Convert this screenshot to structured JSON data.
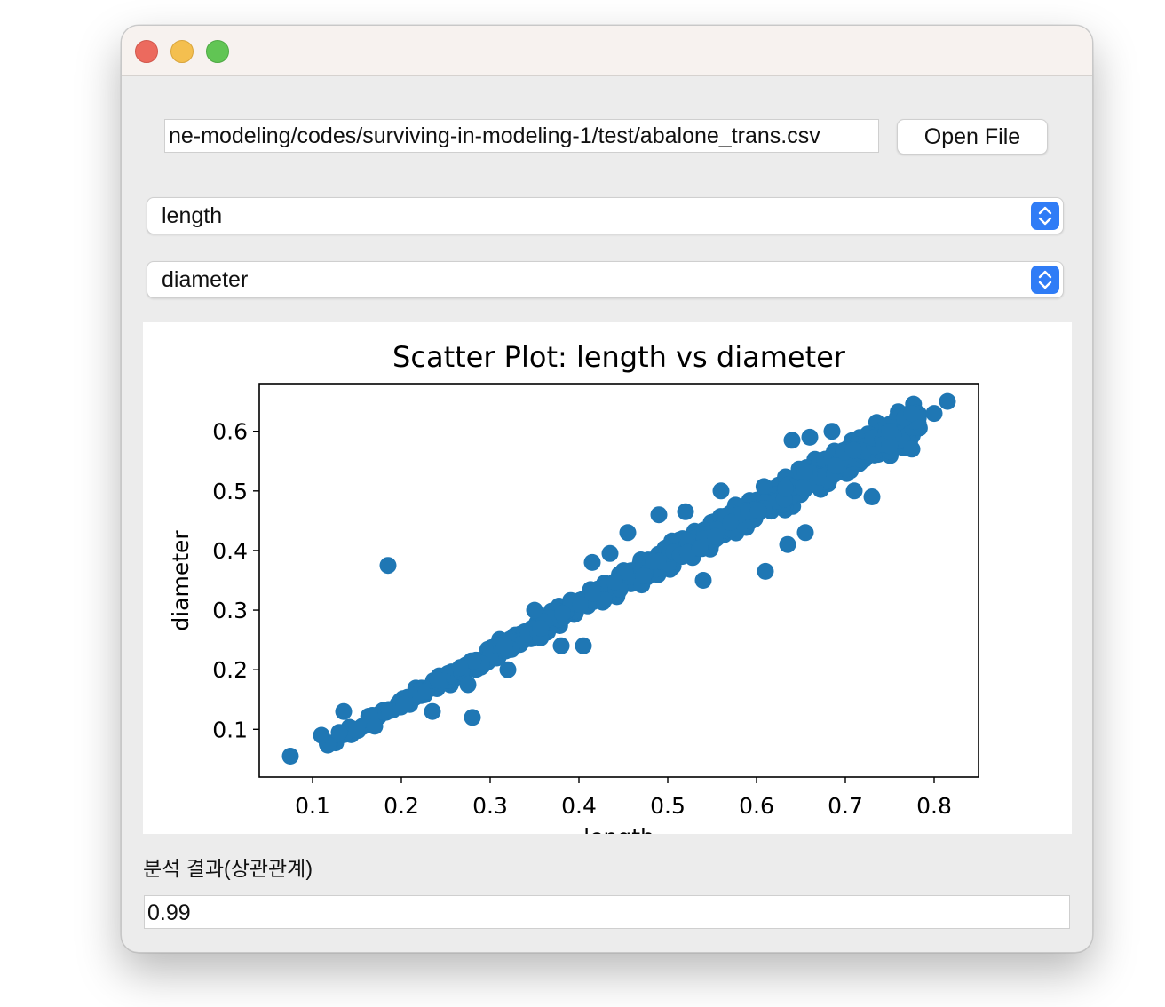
{
  "file_input": {
    "value": "ne-modeling/codes/surviving-in-modeling-1/test/abalone_trans.csv"
  },
  "open_button": {
    "label": "Open File"
  },
  "combo_x": {
    "selected": "length"
  },
  "combo_y": {
    "selected": "diameter"
  },
  "result": {
    "label": "분석 결과(상관관계)",
    "value": "0.99"
  },
  "colors": {
    "marker": "#1f77b4",
    "select_accent": "#2f7cf6",
    "close": "#ec6a5e",
    "minimize": "#f4bf4f",
    "zoom": "#61c554"
  },
  "chart_data": {
    "type": "scatter",
    "title": "Scatter Plot: length vs diameter",
    "xlabel": "length",
    "ylabel": "diameter",
    "xlim": [
      0.04,
      0.85
    ],
    "ylim": [
      0.02,
      0.68
    ],
    "xticks": [
      0.1,
      0.2,
      0.3,
      0.4,
      0.5,
      0.6,
      0.7,
      0.8
    ],
    "yticks": [
      0.1,
      0.2,
      0.3,
      0.4,
      0.5,
      0.6
    ],
    "grid": false,
    "legend": "none",
    "trend": {
      "slope": 0.815,
      "intercept": -0.019,
      "x_range": [
        0.075,
        0.815
      ]
    },
    "points": [
      {
        "x": 0.075,
        "y": 0.055
      },
      {
        "x": 0.11,
        "y": 0.09
      },
      {
        "x": 0.13,
        "y": 0.095
      },
      {
        "x": 0.135,
        "y": 0.13
      },
      {
        "x": 0.15,
        "y": 0.1
      },
      {
        "x": 0.17,
        "y": 0.105
      },
      {
        "x": 0.185,
        "y": 0.375
      },
      {
        "x": 0.235,
        "y": 0.13
      },
      {
        "x": 0.28,
        "y": 0.12
      },
      {
        "x": 0.275,
        "y": 0.175
      },
      {
        "x": 0.32,
        "y": 0.2
      },
      {
        "x": 0.35,
        "y": 0.3
      },
      {
        "x": 0.38,
        "y": 0.24
      },
      {
        "x": 0.405,
        "y": 0.24
      },
      {
        "x": 0.415,
        "y": 0.38
      },
      {
        "x": 0.435,
        "y": 0.395
      },
      {
        "x": 0.455,
        "y": 0.43
      },
      {
        "x": 0.49,
        "y": 0.46
      },
      {
        "x": 0.52,
        "y": 0.465
      },
      {
        "x": 0.54,
        "y": 0.35
      },
      {
        "x": 0.56,
        "y": 0.5
      },
      {
        "x": 0.61,
        "y": 0.365
      },
      {
        "x": 0.635,
        "y": 0.41
      },
      {
        "x": 0.655,
        "y": 0.43
      },
      {
        "x": 0.64,
        "y": 0.585
      },
      {
        "x": 0.66,
        "y": 0.59
      },
      {
        "x": 0.685,
        "y": 0.6
      },
      {
        "x": 0.71,
        "y": 0.5
      },
      {
        "x": 0.73,
        "y": 0.49
      },
      {
        "x": 0.75,
        "y": 0.6
      },
      {
        "x": 0.775,
        "y": 0.57
      },
      {
        "x": 0.775,
        "y": 0.63
      },
      {
        "x": 0.8,
        "y": 0.63
      },
      {
        "x": 0.815,
        "y": 0.65
      }
    ]
  }
}
